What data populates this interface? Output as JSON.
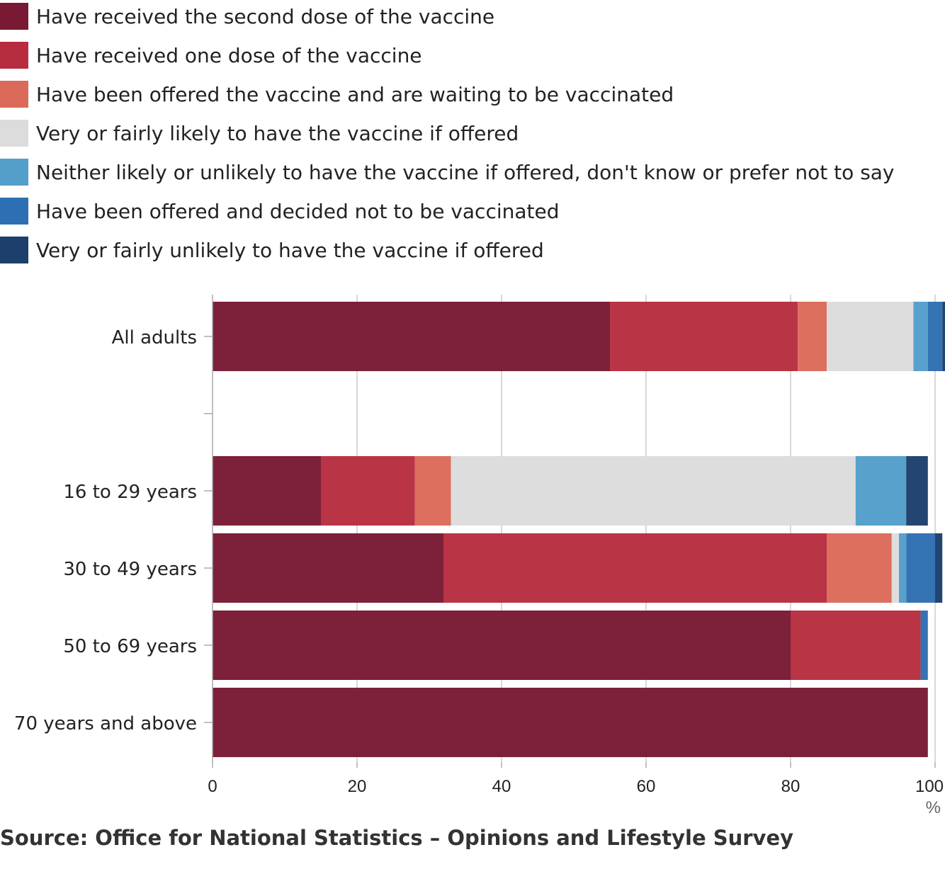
{
  "legend": [
    {
      "label": "Have received the second dose of the vaccine",
      "color": "#791934"
    },
    {
      "label": "Have received one dose of the vaccine",
      "color": "#b72d3f"
    },
    {
      "label": "Have been offered the vaccine and are waiting to be vaccinated",
      "color": "#dc6a5a"
    },
    {
      "label": "Very or fairly likely to have the vaccine if offered",
      "color": "#dcdcdc"
    },
    {
      "label": "Neither likely or unlikely to have the vaccine if offered, don't know or prefer not to say",
      "color": "#539ecb"
    },
    {
      "label": "Have been offered and decided not to be vaccinated",
      "color": "#2d6fb3"
    },
    {
      "label": "Very or fairly unlikely to have the vaccine if offered",
      "color": "#1c3f6c"
    }
  ],
  "chart_data": {
    "type": "bar",
    "orientation": "horizontal",
    "stacked": true,
    "categories": [
      "All adults",
      "",
      "16 to 29 years",
      "30 to 49 years",
      "50 to 69 years",
      "70 years and above"
    ],
    "series": [
      {
        "name": "Have received the second dose of the vaccine",
        "color": "#791934",
        "values": [
          55,
          null,
          15,
          32,
          80,
          99
        ]
      },
      {
        "name": "Have received one dose of the vaccine",
        "color": "#b72d3f",
        "values": [
          26,
          null,
          13,
          53,
          18,
          0
        ]
      },
      {
        "name": "Have been offered the vaccine and are waiting to be vaccinated",
        "color": "#dc6a5a",
        "values": [
          4,
          null,
          5,
          9,
          0,
          0
        ]
      },
      {
        "name": "Very or fairly likely to have the vaccine if offered",
        "color": "#dcdcdc",
        "values": [
          12,
          null,
          56,
          1,
          0,
          0
        ]
      },
      {
        "name": "Neither likely or unlikely to have the vaccine if offered, don't know or prefer not to say",
        "color": "#539ecb",
        "values": [
          2,
          null,
          7,
          1,
          0,
          0
        ]
      },
      {
        "name": "Have been offered and decided not to be vaccinated",
        "color": "#2d6fb3",
        "values": [
          2,
          null,
          0,
          4,
          1,
          0
        ]
      },
      {
        "name": "Very or fairly unlikely to have the vaccine if offered",
        "color": "#1c3f6c",
        "values": [
          1,
          null,
          3,
          1,
          0,
          0
        ]
      }
    ],
    "xlim": [
      0,
      100
    ],
    "xticks": [
      0,
      20,
      40,
      60,
      80,
      100
    ],
    "xlabel": "%",
    "ylabel": "",
    "title": "",
    "grid": true,
    "legend_position": "top"
  },
  "source": "Source: Office for National Statistics – Opinions and Lifestyle Survey"
}
